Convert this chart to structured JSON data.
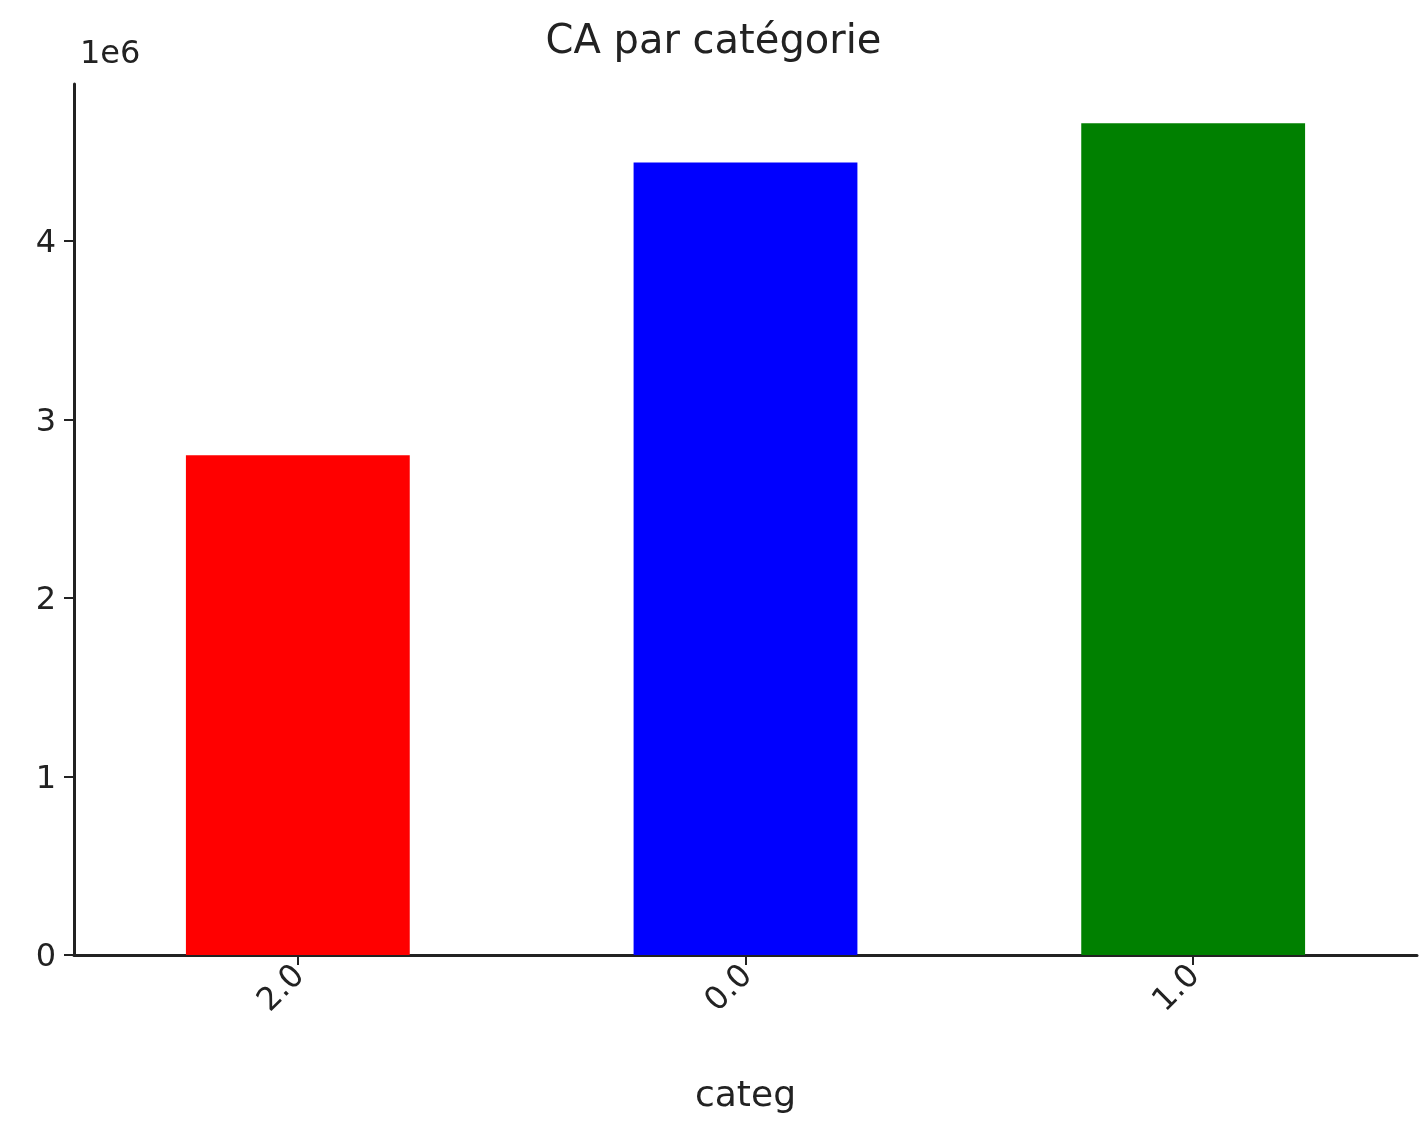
{
  "chart_data": {
    "type": "bar",
    "title": "CA par catégorie",
    "xlabel": "categ",
    "categories": [
      "2.0",
      "0.0",
      "1.0"
    ],
    "values": [
      2.8,
      4.44,
      4.66
    ],
    "colors": [
      "#ff0000",
      "#0000ff",
      "#008000"
    ],
    "ylim": [
      0,
      4.88
    ],
    "yticks": [
      0,
      1,
      2,
      3,
      4
    ],
    "grid": false,
    "annotations": [
      "1e6"
    ]
  }
}
